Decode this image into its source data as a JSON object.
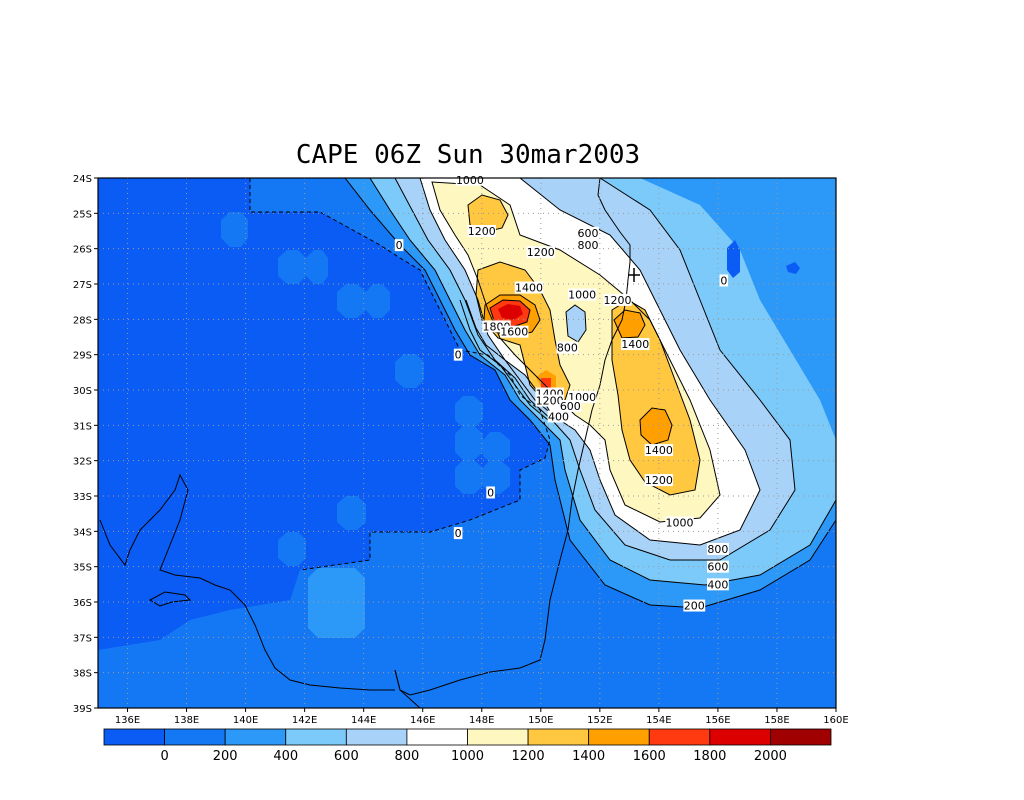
{
  "title": "CAPE 06Z Sun 30mar2003",
  "colors": {
    "lt0": "#0a5cf5",
    "b0": "#1478f5",
    "b200": "#2c98f7",
    "b400": "#7ccafa",
    "b600": "#a8d2f8",
    "b800": "#ffffff",
    "b1000": "#fff7c0",
    "b1200": "#ffc840",
    "b1400": "#ffa000",
    "b1600": "#ff3a10",
    "b1800": "#dc0000",
    "b2000": "#a00000"
  },
  "axes": {
    "lon_ticks": [
      "136E",
      "138E",
      "140E",
      "142E",
      "144E",
      "146E",
      "148E",
      "150E",
      "152E",
      "154E",
      "156E",
      "158E",
      "160E"
    ],
    "lat_ticks": [
      "24S",
      "25S",
      "26S",
      "27S",
      "28S",
      "29S",
      "30S",
      "31S",
      "32S",
      "33S",
      "34S",
      "35S",
      "36S",
      "37S",
      "38S",
      "39S"
    ],
    "lon_range": [
      135,
      160
    ],
    "lat_range": [
      -24,
      -39
    ]
  },
  "colorbar": {
    "labels": [
      "0",
      "200",
      "400",
      "600",
      "800",
      "1000",
      "1200",
      "1400",
      "1600",
      "1800",
      "2000"
    ]
  },
  "contour_labels": [
    {
      "text": "1000",
      "lon": 147.6,
      "lat": -24.05
    },
    {
      "text": "1200",
      "lon": 148.0,
      "lat": -25.5
    },
    {
      "text": "0",
      "lon": 145.2,
      "lat": -25.9
    },
    {
      "text": "600",
      "lon": 151.6,
      "lat": -25.55
    },
    {
      "text": "800",
      "lon": 151.6,
      "lat": -25.9
    },
    {
      "text": "1200",
      "lon": 150.0,
      "lat": -26.1
    },
    {
      "text": "0",
      "lon": 156.2,
      "lat": -26.9
    },
    {
      "text": "1400",
      "lon": 149.6,
      "lat": -27.1
    },
    {
      "text": "1000",
      "lon": 151.4,
      "lat": -27.3
    },
    {
      "text": "1200",
      "lon": 152.6,
      "lat": -27.45
    },
    {
      "text": "1800",
      "lon": 148.5,
      "lat": -28.2
    },
    {
      "text": "1600",
      "lon": 149.1,
      "lat": -28.35
    },
    {
      "text": "1400",
      "lon": 153.2,
      "lat": -28.7
    },
    {
      "text": "800",
      "lon": 150.9,
      "lat": -28.8
    },
    {
      "text": "0",
      "lon": 147.2,
      "lat": -29.0
    },
    {
      "text": "1400",
      "lon": 150.3,
      "lat": -30.1
    },
    {
      "text": "1200",
      "lon": 150.3,
      "lat": -30.3
    },
    {
      "text": "1000",
      "lon": 151.4,
      "lat": -30.2
    },
    {
      "text": "600",
      "lon": 151.0,
      "lat": -30.45
    },
    {
      "text": "400",
      "lon": 150.6,
      "lat": -30.75
    },
    {
      "text": "1400",
      "lon": 154.0,
      "lat": -31.7
    },
    {
      "text": "1200",
      "lon": 154.0,
      "lat": -32.55
    },
    {
      "text": "0",
      "lon": 148.3,
      "lat": -32.9
    },
    {
      "text": "1000",
      "lon": 154.7,
      "lat": -33.75
    },
    {
      "text": "0",
      "lon": 147.2,
      "lat": -34.05
    },
    {
      "text": "800",
      "lon": 156.0,
      "lat": -34.5
    },
    {
      "text": "600",
      "lon": 156.0,
      "lat": -35.0
    },
    {
      "text": "400",
      "lon": 156.0,
      "lat": -35.5
    },
    {
      "text": "200",
      "lon": 155.2,
      "lat": -36.1
    }
  ]
}
